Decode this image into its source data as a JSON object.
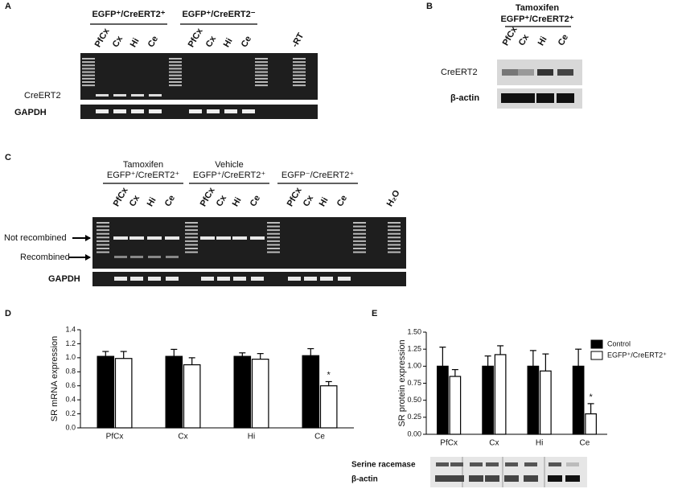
{
  "panels": {
    "a": {
      "label": "A",
      "groups": [
        "EGFP⁺/CreERT2⁺",
        "EGFP⁺/CreERT2⁻"
      ],
      "lanes": [
        "PfCx",
        "Cx",
        "Hi",
        "Ce",
        "PfCx",
        "Cx",
        "Hi",
        "Ce",
        "-RT"
      ],
      "rows": [
        "CreERT2",
        "GAPDH"
      ]
    },
    "b": {
      "label": "B",
      "treatment": "Tamoxifen",
      "genotype": "EGFP⁺/CreERT2⁺",
      "lanes": [
        "PfCx",
        "Cx",
        "Hi",
        "Ce"
      ],
      "rows": [
        "CreERT2",
        "β-actin"
      ]
    },
    "c": {
      "label": "C",
      "groups": [
        [
          "Tamoxifen",
          "EGFP⁺/CreERT2⁺"
        ],
        [
          "Vehicle",
          "EGFP⁺/CreERT2⁺"
        ],
        [
          "EGFP⁻/CreERT2⁺"
        ]
      ],
      "lanes": [
        "PfCx",
        "Cx",
        "Hi",
        "Ce",
        "PfCx",
        "Cx",
        "Hi",
        "Ce",
        "PfCx",
        "Cx",
        "Hi",
        "Ce",
        "H₂O"
      ],
      "rows": [
        "Not recombined",
        "Recombined",
        "GAPDH"
      ]
    }
  },
  "chart_data": [
    {
      "type": "bar",
      "label": "D",
      "y_label": "SR mRNA expression",
      "categories": [
        "PfCx",
        "Cx",
        "Hi",
        "Ce"
      ],
      "series": [
        {
          "color": "#000000",
          "values": [
            1.02,
            1.02,
            1.02,
            1.03
          ],
          "errors": [
            0.07,
            0.1,
            0.05,
            0.1
          ]
        },
        {
          "color": "#ffffff",
          "values": [
            0.99,
            0.9,
            0.98,
            0.6
          ],
          "errors": [
            0.1,
            0.1,
            0.08,
            0.06
          ]
        }
      ],
      "annotation": "*",
      "ylim": [
        0,
        1.4
      ],
      "yticks": [
        {
          "value": 0,
          "label": "0.0"
        },
        {
          "value": 0.2,
          "label": "0.2"
        },
        {
          "value": 0.4,
          "label": "0.4"
        },
        {
          "value": 0.6,
          "label": "0.6"
        },
        {
          "value": 0.8,
          "label": "0.8"
        },
        {
          "value": 1.0,
          "label": "1.0"
        },
        {
          "value": 1.2,
          "label": "1.2"
        },
        {
          "value": 1.4,
          "label": "1.4"
        }
      ]
    },
    {
      "type": "bar",
      "label": "E",
      "y_label": "SR protein expression",
      "categories": [
        "PfCx",
        "Cx",
        "Hi",
        "Ce"
      ],
      "series": [
        {
          "name": "Control",
          "color": "#000000",
          "values": [
            1.0,
            1.0,
            1.0,
            1.0
          ],
          "errors": [
            0.28,
            0.15,
            0.23,
            0.25
          ]
        },
        {
          "name": "EGFP⁺/CreERT2⁺",
          "color": "#ffffff",
          "values": [
            0.85,
            1.17,
            0.93,
            0.3
          ],
          "errors": [
            0.1,
            0.13,
            0.25,
            0.15
          ]
        }
      ],
      "annotation": "*",
      "legend": "right",
      "blot_rows": [
        "Serine racemase",
        "β-actin"
      ],
      "ylim": [
        0,
        1.5
      ],
      "yticks": [
        {
          "value": 0,
          "label": "0.00"
        },
        {
          "value": 0.25,
          "label": "0.25"
        },
        {
          "value": 0.5,
          "label": "0.50"
        },
        {
          "value": 0.75,
          "label": "0.75"
        },
        {
          "value": 1.0,
          "label": "1.00"
        },
        {
          "value": 1.25,
          "label": "1.25"
        },
        {
          "value": 1.5,
          "label": "1.50"
        }
      ]
    }
  ]
}
